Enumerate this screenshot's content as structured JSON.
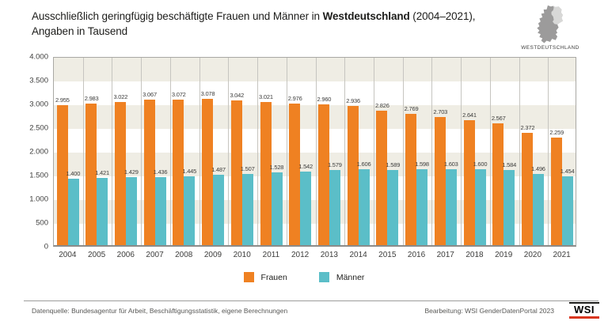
{
  "header": {
    "title_prefix": "Ausschließlich geringfügig beschäftigte Frauen und Männer in ",
    "title_bold": "Westdeutschland",
    "title_suffix": " (2004–2021),",
    "title_line2": "Angaben in Tausend",
    "map_caption": "WESTDEUTSCHLAND"
  },
  "chart_data": {
    "type": "bar",
    "title": "Ausschließlich geringfügig beschäftigte Frauen und Männer in Westdeutschland (2004–2021), Angaben in Tausend",
    "categories": [
      "2004",
      "2005",
      "2006",
      "2007",
      "2008",
      "2009",
      "2010",
      "2011",
      "2012",
      "2013",
      "2014",
      "2015",
      "2016",
      "2017",
      "2018",
      "2019",
      "2020",
      "2021"
    ],
    "series": [
      {
        "name": "Frauen",
        "color": "#ef8122",
        "values": [
          2955,
          2983,
          3022,
          3067,
          3072,
          3078,
          3042,
          3021,
          2976,
          2960,
          2936,
          2826,
          2769,
          2703,
          2641,
          2567,
          2372,
          2259
        ]
      },
      {
        "name": "Männer",
        "color": "#5bbec8",
        "values": [
          1400,
          1421,
          1429,
          1436,
          1445,
          1487,
          1507,
          1528,
          1542,
          1579,
          1606,
          1589,
          1598,
          1603,
          1600,
          1584,
          1496,
          1454
        ]
      }
    ],
    "ylim": [
      0,
      4000
    ],
    "ytick_step": 500,
    "ytick_labels": [
      "4.000",
      "3.500",
      "3.000",
      "2.500",
      "2.000",
      "1.500",
      "1.000",
      "500",
      "0"
    ],
    "grid": "alternating horizontal bands",
    "band_color": "#efede4",
    "legend_position": "bottom-center",
    "legend": [
      "Frauen",
      "Männer"
    ],
    "value_labels_shown": true
  },
  "colors": {
    "frauen": "#ef8122",
    "maenner": "#5bbec8",
    "band": "#efede4",
    "map_west": "#9c9b9b",
    "map_east": "#d8d8d7",
    "logo_underline": "#d9361e"
  },
  "footer": {
    "source": "Datenquelle: Bundesagentur für Arbeit, Beschäftigungsstatistik, eigene Berechnungen",
    "editing": "Bearbeitung: WSI GenderDatenPortal 2023",
    "logo_text": "WSI"
  }
}
